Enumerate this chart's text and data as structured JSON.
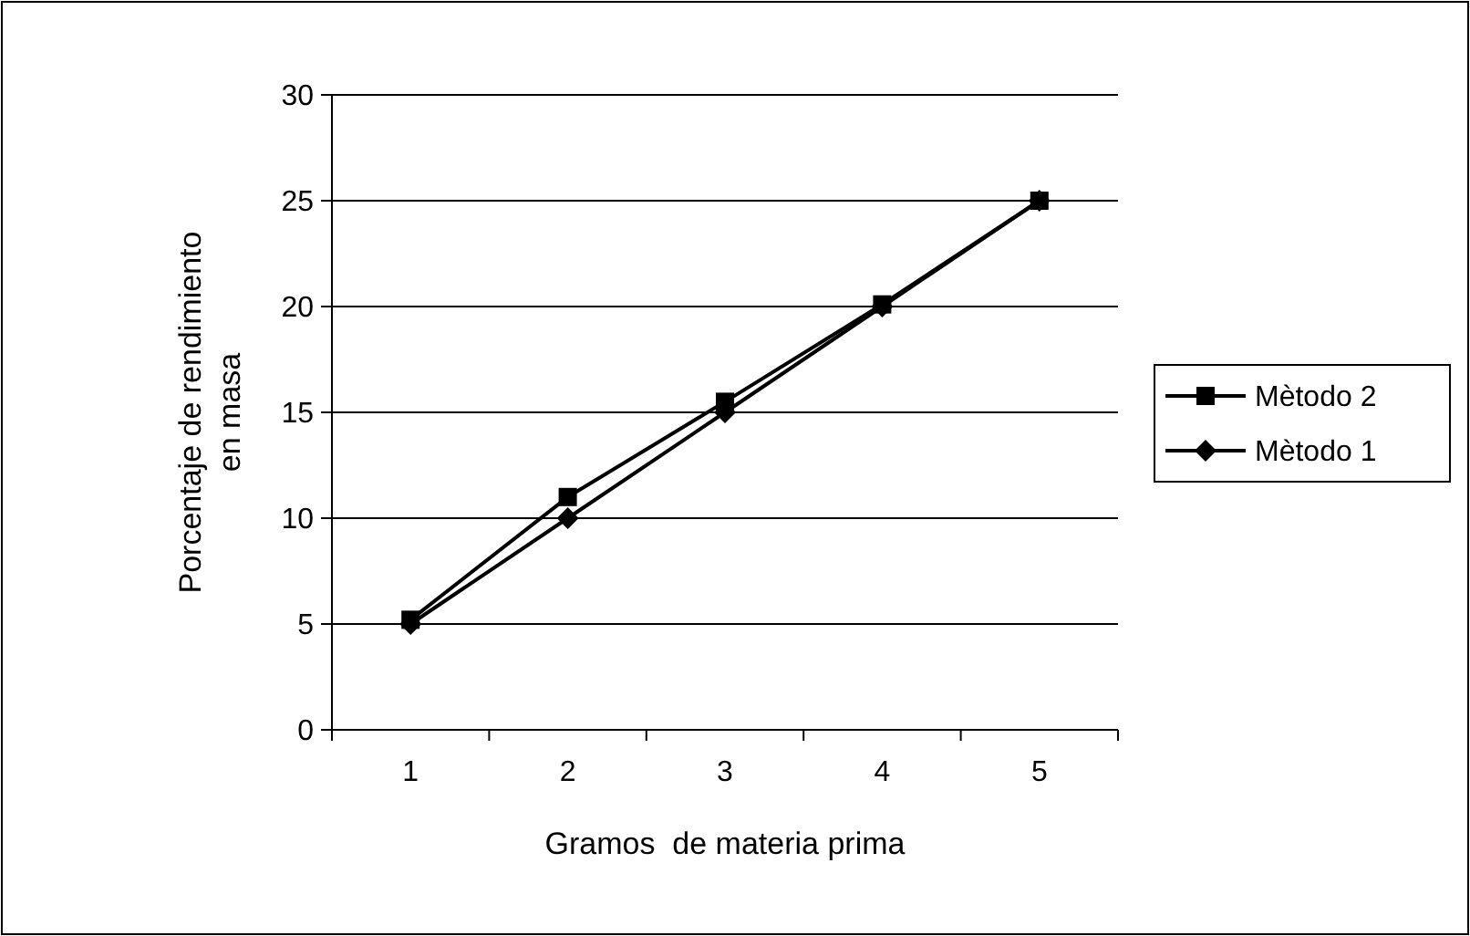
{
  "chart_data": {
    "type": "line",
    "xlabel": "Gramos  de materia prima",
    "ylabel": "Porcentaje de rendimiento en masa",
    "categories": [
      "1",
      "2",
      "3",
      "4",
      "5"
    ],
    "series": [
      {
        "name": "Mètodo 2",
        "color": "#000000",
        "marker": "square",
        "values": [
          5.2,
          11,
          15.5,
          20.1,
          25
        ]
      },
      {
        "name": "Mètodo 1",
        "color": "#000000",
        "marker": "diamond",
        "values": [
          5,
          10,
          15,
          20,
          25
        ]
      }
    ],
    "ylim": [
      0,
      30
    ],
    "yticks": [
      0,
      5,
      10,
      15,
      20,
      25,
      30
    ],
    "grid": "y",
    "legend": "right",
    "line_style": "solid"
  }
}
